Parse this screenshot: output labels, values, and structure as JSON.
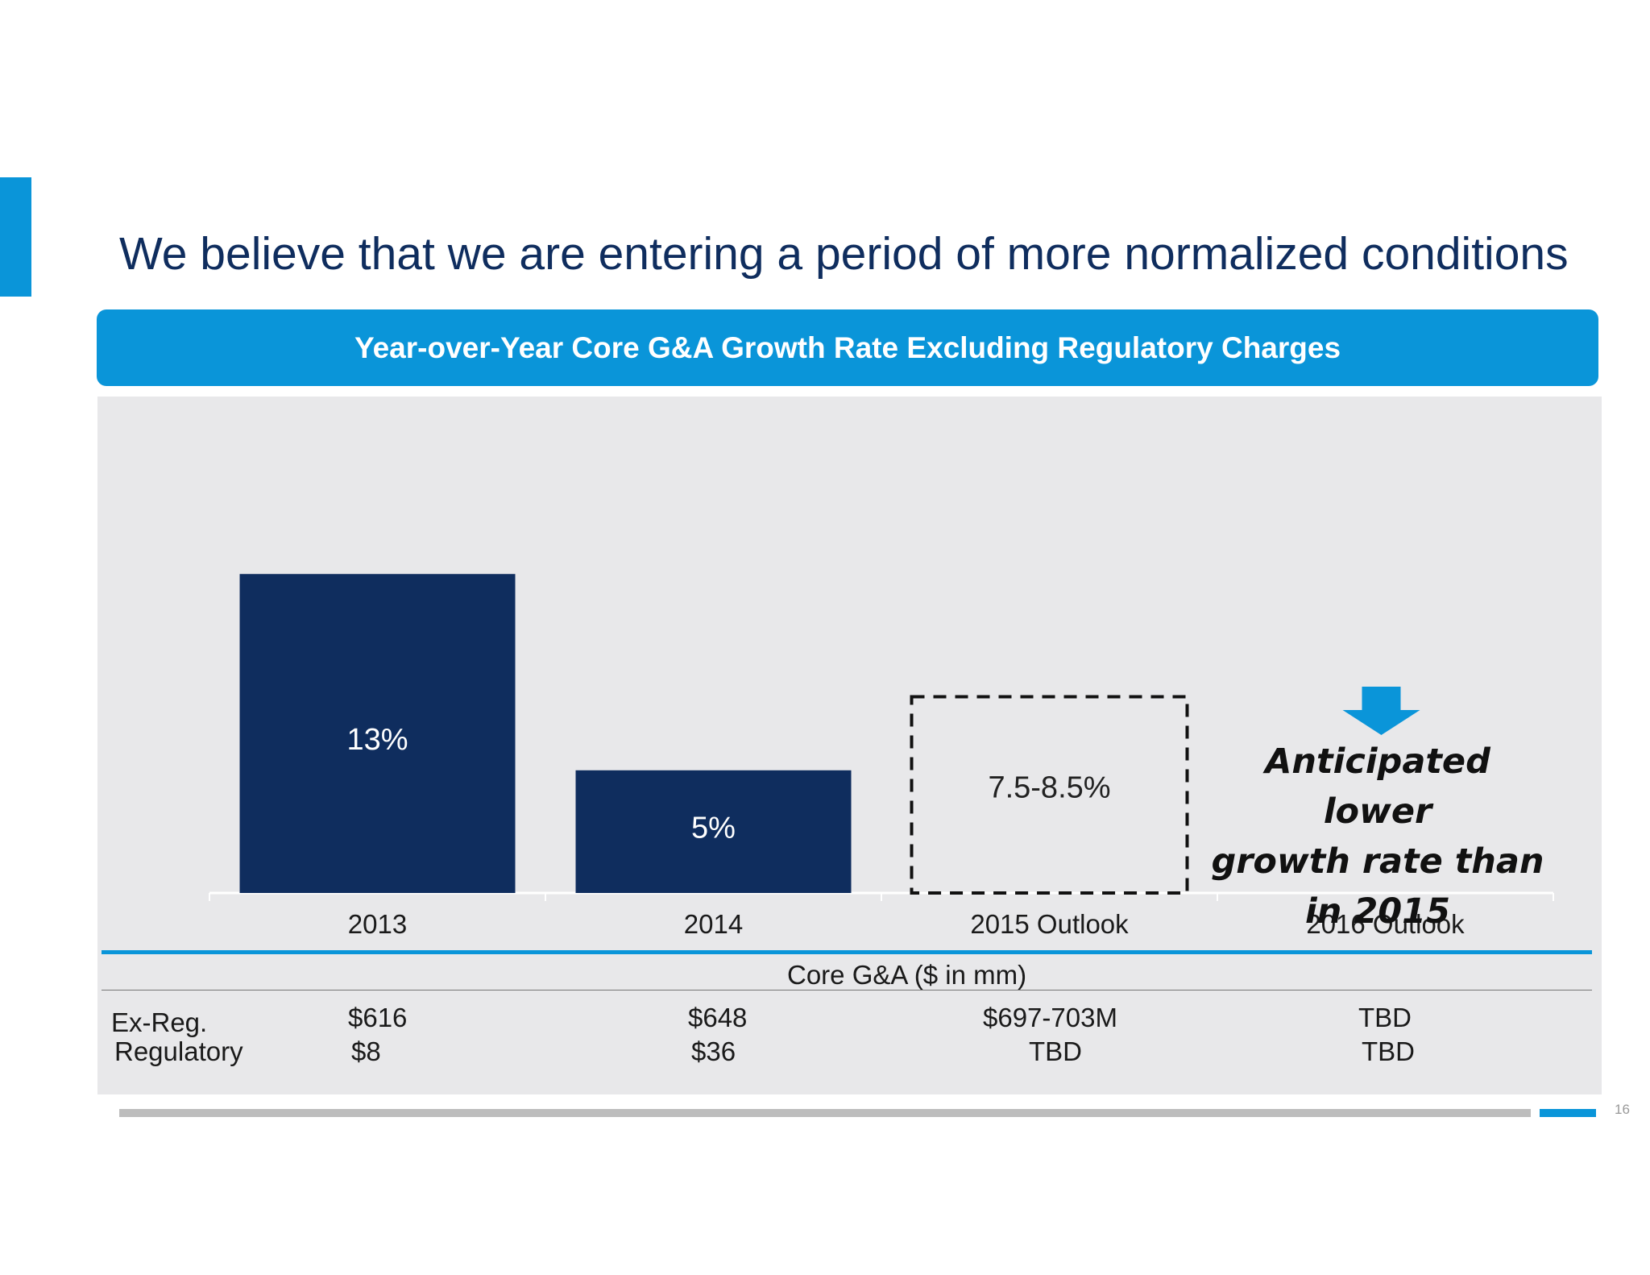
{
  "page": {
    "title": "We believe that we are entering a period of more normalized conditions",
    "page_number": "16"
  },
  "chart_data": {
    "type": "bar",
    "title": "Year-over-Year Core G&A Growth Rate Excluding Regulatory Charges",
    "categories": [
      "2013",
      "2014",
      "2015 Outlook",
      "2016 Outlook"
    ],
    "values": [
      13,
      5,
      8,
      null
    ],
    "value_labels": [
      "13%",
      "5%",
      "7.5-8.5%",
      ""
    ],
    "projected": [
      false,
      false,
      true,
      false
    ],
    "ylim": [
      0,
      18
    ],
    "grid": false,
    "annotation": {
      "category": "2016 Outlook",
      "lines": [
        "Anticipated lower",
        "growth rate than",
        "in 2015"
      ]
    },
    "colors": {
      "bar": "#0f2d5e",
      "projected_outline": "#111111",
      "arrow": "#0a95d9"
    }
  },
  "table": {
    "caption": "Core G&A ($ in mm)",
    "rows": [
      {
        "label": "Ex-Reg.",
        "values": [
          "$616",
          "$648",
          "$697-703M",
          "TBD"
        ]
      },
      {
        "label": "Regulatory",
        "values": [
          "$8",
          "$36",
          "TBD",
          "TBD"
        ]
      }
    ]
  },
  "colors": {
    "accent": "#0a95d9",
    "title": "#0f2d5e",
    "panel": "#e8e8ea"
  }
}
